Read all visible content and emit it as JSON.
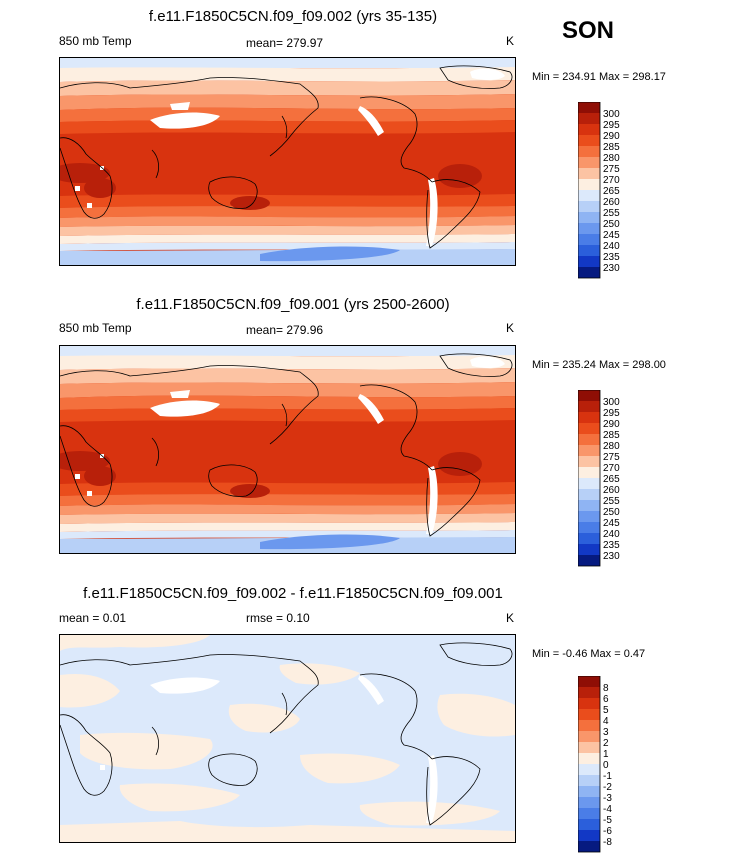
{
  "season": "SON",
  "panels": [
    {
      "title": "f.e11.F1850C5CN.f09_f09.002 (yrs 35-135)",
      "left_label": "850 mb Temp",
      "center_label": "mean= 279.97",
      "units": "K",
      "minmax": "Min = 234.91 Max = 298.17"
    },
    {
      "title": "f.e11.F1850C5CN.f09_f09.001 (yrs 2500-2600)",
      "left_label": "850 mb Temp",
      "center_label": "mean= 279.96",
      "units": "K",
      "minmax": "Min = 235.24 Max = 298.00"
    },
    {
      "title": "f.e11.F1850C5CN.f09_f09.002 - f.e11.F1850C5CN.f09_f09.001",
      "left_label": "mean =  0.01",
      "center_label": "rmse =  0.10",
      "units": "K",
      "minmax": "Min =  -0.46 Max =  0.47"
    }
  ],
  "chart_data": [
    {
      "type": "heatmap",
      "title": "f.e11.F1850C5CN.f09_f09.002 (yrs 35-135)",
      "variable": "850 mb Temp",
      "units": "K",
      "mean": 279.97,
      "min": 234.91,
      "max": 298.17,
      "colorbar_labels": [
        "300",
        "295",
        "290",
        "285",
        "280",
        "275",
        "270",
        "265",
        "260",
        "255",
        "250",
        "245",
        "240",
        "235",
        "230"
      ],
      "colorbar_colors": [
        "#8f0e05",
        "#b8200a",
        "#d8330f",
        "#ea4d1c",
        "#f4703d",
        "#f9966a",
        "#fcc3a3",
        "#fdefe1",
        "#dce9fb",
        "#b7d0f7",
        "#8fb4f3",
        "#6b98ee",
        "#4a7de7",
        "#2b5fdb",
        "#1238c5",
        "#061a80"
      ]
    },
    {
      "type": "heatmap",
      "title": "f.e11.F1850C5CN.f09_f09.001 (yrs 2500-2600)",
      "variable": "850 mb Temp",
      "units": "K",
      "mean": 279.96,
      "min": 235.24,
      "max": 298.0,
      "colorbar_labels": [
        "300",
        "295",
        "290",
        "285",
        "280",
        "275",
        "270",
        "265",
        "260",
        "255",
        "250",
        "245",
        "240",
        "235",
        "230"
      ],
      "colorbar_colors": [
        "#8f0e05",
        "#b8200a",
        "#d8330f",
        "#ea4d1c",
        "#f4703d",
        "#f9966a",
        "#fcc3a3",
        "#fdefe1",
        "#dce9fb",
        "#b7d0f7",
        "#8fb4f3",
        "#6b98ee",
        "#4a7de7",
        "#2b5fdb",
        "#1238c5",
        "#061a80"
      ]
    },
    {
      "type": "heatmap",
      "title": "f.e11.F1850C5CN.f09_f09.002 - f.e11.F1850C5CN.f09_f09.001",
      "units": "K",
      "mean": 0.01,
      "rmse": 0.1,
      "min": -0.46,
      "max": 0.47,
      "colorbar_labels": [
        "8",
        "6",
        "5",
        "4",
        "3",
        "2",
        "1",
        "0",
        "-1",
        "-2",
        "-3",
        "-4",
        "-5",
        "-6",
        "-8"
      ],
      "colorbar_colors": [
        "#8f0e05",
        "#b8200a",
        "#d8330f",
        "#ea4d1c",
        "#f4703d",
        "#f9966a",
        "#fcc3a3",
        "#fdefe1",
        "#dce9fb",
        "#b7d0f7",
        "#8fb4f3",
        "#6b98ee",
        "#4a7de7",
        "#2b5fdb",
        "#1238c5",
        "#061a80"
      ]
    }
  ]
}
